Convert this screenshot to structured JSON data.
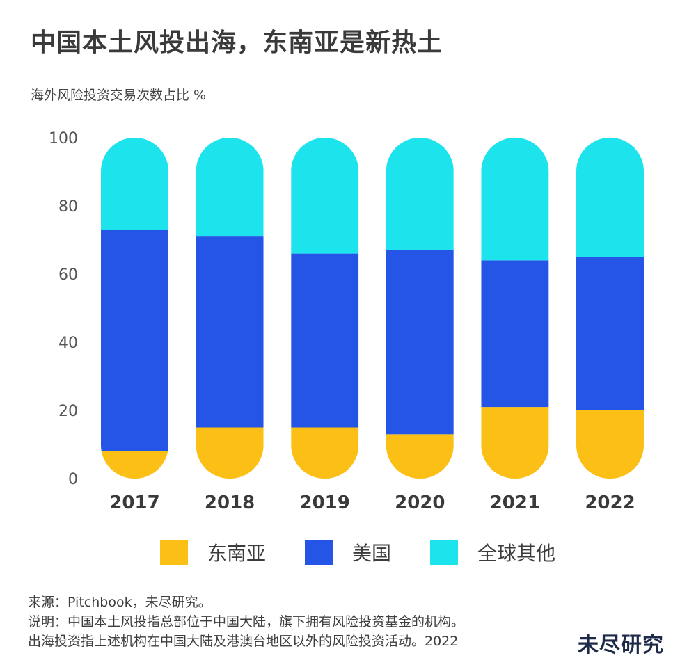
{
  "title": "中国本土风投出海，东南亚是新热土",
  "subtitle": "海外风险投资交易次数占比 %",
  "chart_data": {
    "type": "bar",
    "stacked": true,
    "categories": [
      "2017",
      "2018",
      "2019",
      "2020",
      "2021",
      "2022"
    ],
    "series": [
      {
        "name": "东南亚",
        "color": "#FBBF16",
        "values": [
          8,
          15,
          15,
          13,
          21,
          20
        ]
      },
      {
        "name": "美国",
        "color": "#2455E6",
        "values": [
          65,
          56,
          51,
          54,
          43,
          45
        ]
      },
      {
        "name": "全球其他",
        "color": "#1DE4EC",
        "values": [
          27,
          29,
          34,
          33,
          36,
          35
        ]
      }
    ],
    "yticks": [
      0,
      20,
      40,
      60,
      80,
      100
    ],
    "ylim": [
      0,
      100
    ],
    "grid": false,
    "legend": "bottom"
  },
  "notes": {
    "source": "来源：Pitchbook，未尽研究。",
    "line1": "说明：中国本土风投指总部位于中国大陆，旗下拥有风险投资基金的机构。",
    "line2": "出海投资指上述机构在中国大陆及港澳台地区以外的风险投资活动。2022"
  },
  "brand": "未尽研究"
}
